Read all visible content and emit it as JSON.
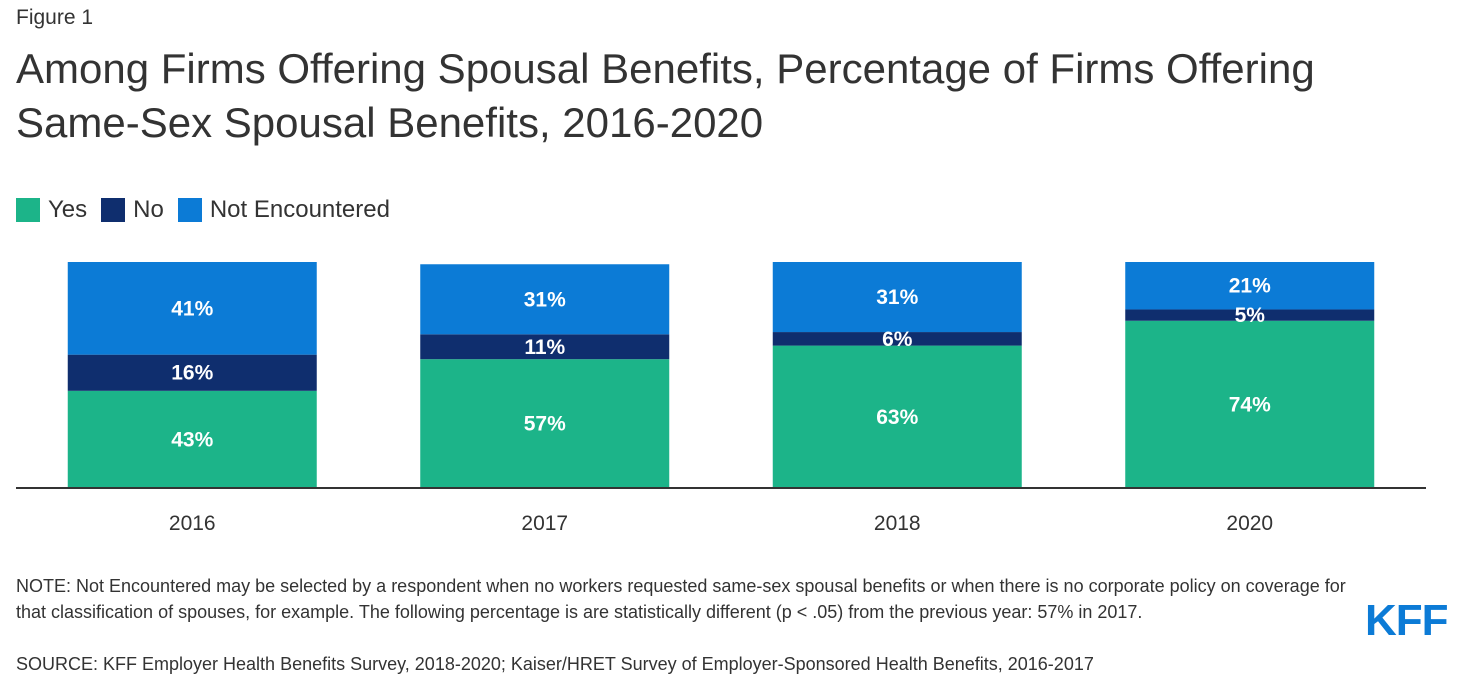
{
  "figure_label": "Figure 1",
  "title": "Among Firms Offering Spousal Benefits, Percentage of Firms Offering Same-Sex Spousal Benefits, 2016-2020",
  "legend": [
    {
      "label": "Yes",
      "color": "#1cb489"
    },
    {
      "label": "No",
      "color": "#0f2e6e"
    },
    {
      "label": "Not Encountered",
      "color": "#0c7bd6"
    }
  ],
  "chart_data": {
    "type": "bar",
    "stacked": true,
    "categories": [
      "2016",
      "2017",
      "2018",
      "2020"
    ],
    "series": [
      {
        "name": "Yes",
        "color": "#1cb489",
        "values": [
          43,
          57,
          63,
          74
        ],
        "labels": [
          "43%",
          "57%",
          "63%",
          "74%"
        ]
      },
      {
        "name": "No",
        "color": "#0f2e6e",
        "values": [
          16,
          11,
          6,
          5
        ],
        "labels": [
          "16%",
          "11%",
          "6%",
          "5%"
        ]
      },
      {
        "name": "Not Encountered",
        "color": "#0c7bd6",
        "values": [
          41,
          31,
          31,
          21
        ],
        "labels": [
          "41%",
          "31%",
          "31%",
          "21%"
        ]
      }
    ],
    "ylim": [
      0,
      100
    ],
    "legend_position": "top-left",
    "grid": false
  },
  "note": "NOTE: Not Encountered may be selected by a respondent when no workers requested same-sex spousal benefits or when there is no corporate policy on coverage for that classification of spouses, for example. The following percentage is are statistically different (p < .05) from the previous year: 57% in 2017.",
  "source": "SOURCE: KFF Employer Health Benefits Survey, 2018-2020; Kaiser/HRET Survey of Employer-Sponsored Health Benefits, 2016-2017",
  "logo": "KFF"
}
